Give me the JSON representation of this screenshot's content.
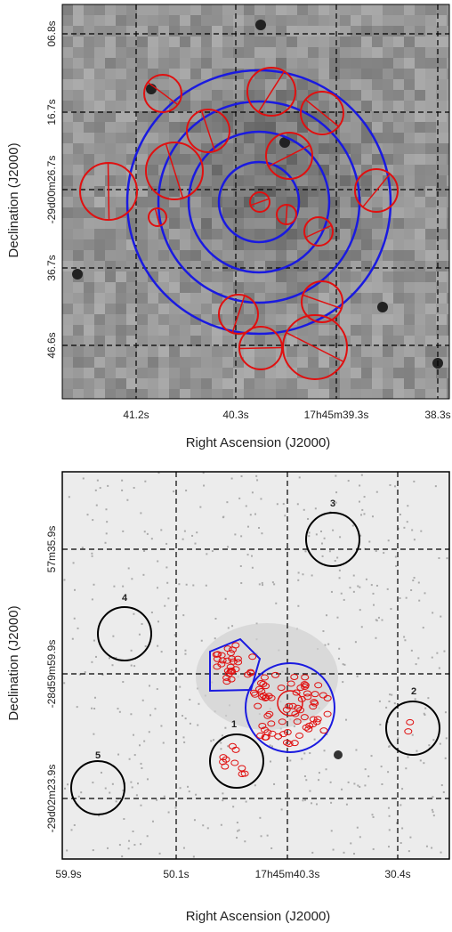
{
  "top_panel": {
    "x_label": "Right Ascension (J2000)",
    "y_label": "Declination (J2000)",
    "x_ticks": [
      "41.2s",
      "40.3s",
      "17h45m39.3s",
      "38.3s"
    ],
    "y_ticks": [
      "06.8s",
      "16.7s",
      "-29d00m26.7s",
      "36.7s",
      "46.6s"
    ]
  },
  "bottom_panel": {
    "x_label": "Right Ascension (J2000)",
    "y_label": "Declination (J2000)",
    "x_ticks": [
      "59.9s",
      "50.1s",
      "17h45m40.3s",
      "30.4s"
    ],
    "y_ticks": [
      "57m35.9s",
      "-28d59m59.9s",
      "-29d02m23.9s"
    ],
    "region_labels": [
      "1",
      "2",
      "3",
      "4",
      "5"
    ]
  }
}
